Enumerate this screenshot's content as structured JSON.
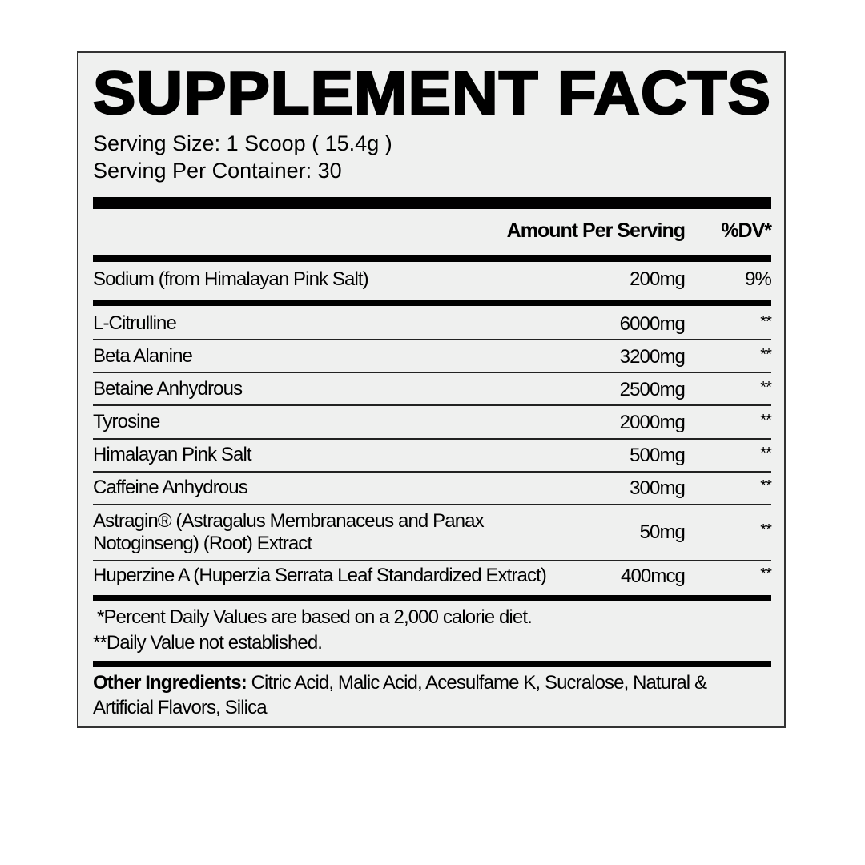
{
  "title": "SUPPLEMENT FACTS",
  "serving_size": "Serving Size: 1 Scoop ( 15.4g )",
  "servings_per_container": "Serving Per Container: 30",
  "header": {
    "amount": "Amount Per Serving",
    "dv": "%DV*"
  },
  "sodium": {
    "name": "Sodium (from Himalayan Pink Salt)",
    "amount": "200mg",
    "dv": "9%"
  },
  "ingredients": [
    {
      "name": "L-Citrulline",
      "amount": "6000mg",
      "dv": "**"
    },
    {
      "name": "Beta Alanine",
      "amount": "3200mg",
      "dv": "**"
    },
    {
      "name": "Betaine Anhydrous",
      "amount": "2500mg",
      "dv": "**"
    },
    {
      "name": "Tyrosine",
      "amount": "2000mg",
      "dv": "**"
    },
    {
      "name": "Himalayan Pink Salt",
      "amount": "500mg",
      "dv": "**"
    },
    {
      "name": "Caffeine Anhydrous",
      "amount": "300mg",
      "dv": "**"
    },
    {
      "name": "Astragin® (Astragalus Membranaceus and Panax",
      "name_line2": "Notoginseng) (Root) Extract",
      "amount": "50mg",
      "dv": "**"
    },
    {
      "name": "Huperzine A (Huperzia Serrata Leaf Standardized Extract)",
      "amount": "400mcg",
      "dv": "**"
    }
  ],
  "footnotes": [
    "*Percent Daily Values are based on a 2,000 calorie diet.",
    "**Daily Value not established."
  ],
  "other_ingredients": {
    "label": "Other Ingredients:",
    "line1": " Citric Acid, Malic Acid, Acesulfame K, Sucralose, Natural &",
    "line2": "Artificial Flavors, Silica"
  }
}
